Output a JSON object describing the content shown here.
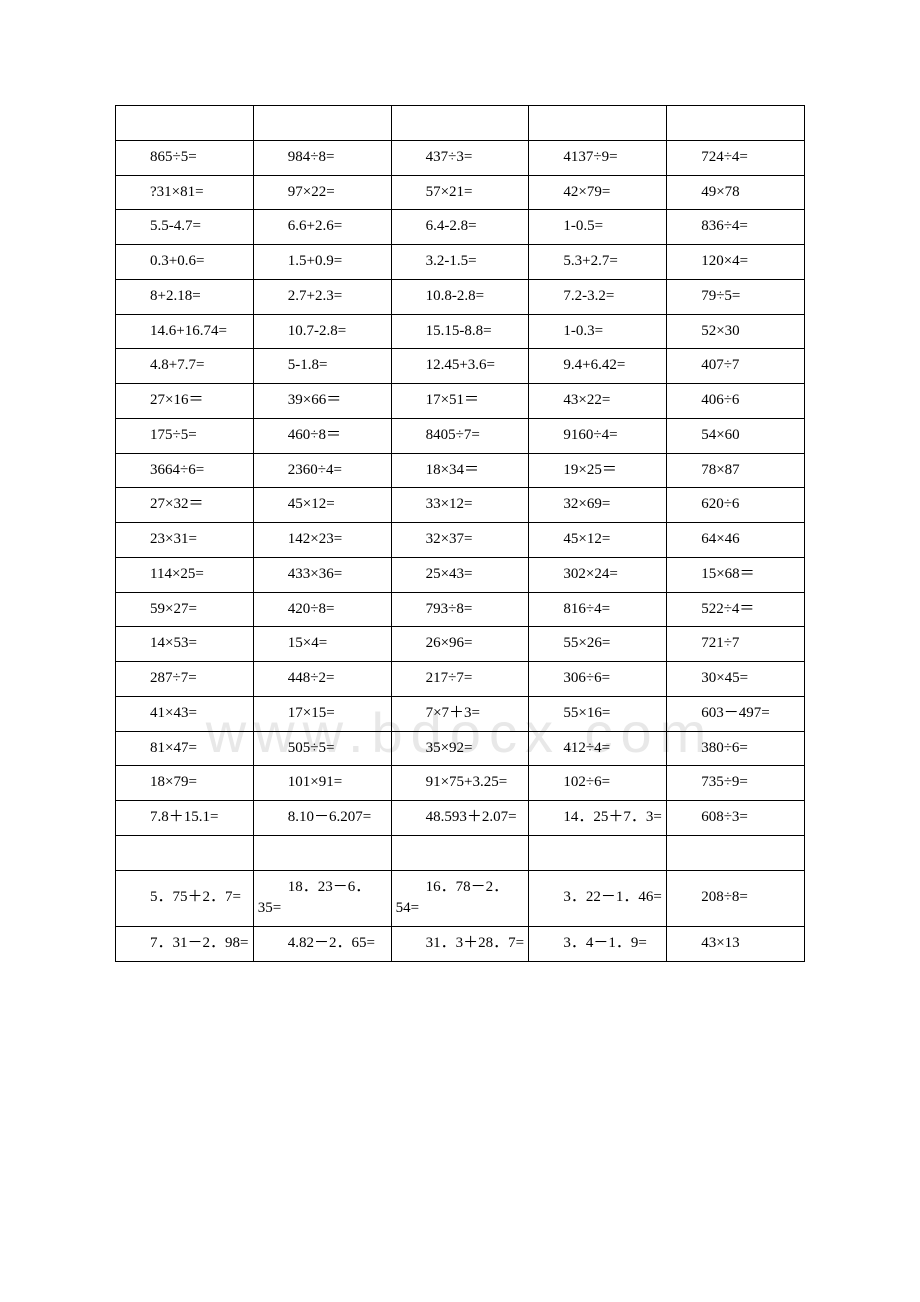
{
  "table": {
    "columns": 5,
    "border_color": "#000000",
    "background_color": "#ffffff",
    "text_color": "#000000",
    "font_size": 15,
    "font_family": "Times New Roman",
    "rows": [
      [
        "",
        "",
        "",
        "",
        ""
      ],
      [
        "865÷5=",
        "984÷8=",
        "437÷3=",
        "4137÷9=",
        "724÷4="
      ],
      [
        "?31×81=",
        "97×22=",
        "57×21=",
        "42×79=",
        "49×78"
      ],
      [
        "5.5-4.7=",
        "6.6+2.6=",
        "6.4-2.8=",
        "1-0.5=",
        "836÷4="
      ],
      [
        "0.3+0.6=",
        "1.5+0.9=",
        "3.2-1.5=",
        "5.3+2.7=",
        "120×4="
      ],
      [
        "8+2.18=",
        "2.7+2.3=",
        "10.8-2.8=",
        "7.2-3.2=",
        "79÷5="
      ],
      [
        "14.6+16.74=",
        "10.7-2.8=",
        "15.15-8.8=",
        "1-0.3=",
        "52×30"
      ],
      [
        "4.8+7.7=",
        "5-1.8=",
        "12.45+3.6=",
        "9.4+6.42=",
        "407÷7"
      ],
      [
        "27×16＝",
        "39×66＝",
        "17×51＝",
        "43×22=",
        "406÷6"
      ],
      [
        "175÷5=",
        "460÷8＝",
        "8405÷7=",
        "9160÷4=",
        "54×60"
      ],
      [
        "3664÷6=",
        "2360÷4=",
        "18×34＝",
        "19×25＝",
        "78×87"
      ],
      [
        "27×32＝",
        "45×12=",
        "33×12=",
        "32×69=",
        "620÷6"
      ],
      [
        "23×31=",
        "142×23=",
        "32×37=",
        "45×12=",
        "64×46"
      ],
      [
        "114×25=",
        "433×36=",
        "25×43=",
        "302×24=",
        "15×68＝"
      ],
      [
        "59×27=",
        "420÷8=",
        "793÷8=",
        "816÷4=",
        "522÷4＝"
      ],
      [
        "14×53=",
        "15×4=",
        "26×96=",
        "55×26=",
        "721÷7"
      ],
      [
        "287÷7=",
        "448÷2=",
        "217÷7=",
        "306÷6=",
        "30×45="
      ],
      [
        "41×43=",
        "17×15=",
        "7×7＋3=",
        "55×16=",
        "603－497="
      ],
      [
        "81×47=",
        "505÷5=",
        "35×92=",
        "412÷4=",
        "380÷6="
      ],
      [
        "18×79=",
        "101×91=",
        "91×75+3.25=",
        "102÷6=",
        "735÷9="
      ],
      [
        "7.8＋15.1=",
        "8.10－6.207=",
        "48.593＋2.07=",
        "14．25＋7．3=",
        "608÷3="
      ],
      [
        "",
        "",
        "",
        "",
        ""
      ],
      [
        "5．75＋2．7=",
        "18．23－6．35=",
        "16．78－2．54=",
        "3．22－1．46=",
        "208÷8="
      ],
      [
        "7．31－2．98=",
        "4.82－2．65=",
        "31．3＋28．7=",
        "3．4－1．9=",
        "43×13"
      ]
    ]
  },
  "watermark": {
    "text": "www.bdocx.com",
    "color": "#e8e8e8",
    "font_size": 56
  }
}
